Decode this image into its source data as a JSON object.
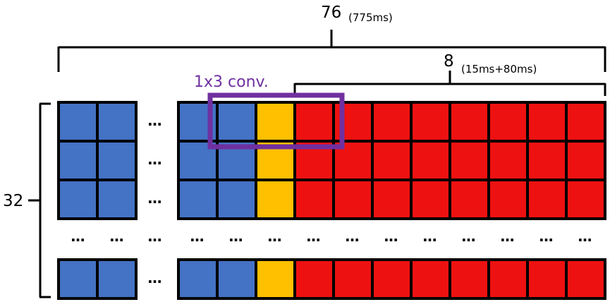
{
  "top_span": {
    "count": "76",
    "duration": "(775ms)"
  },
  "sub_span": {
    "count": "8",
    "duration": "(15ms+80ms)"
  },
  "conv_label": "1x3 conv.",
  "rows_label": "32",
  "ellipsis": "…",
  "colors": {
    "blue": "#4472C4",
    "yellow": "#FFC000",
    "red": "#EE1111",
    "conv_box": "#7030A0",
    "outline": "#000000"
  },
  "cell_row_pattern": {
    "left_group": [
      "blue",
      "blue"
    ],
    "right_group": [
      "blue",
      "blue",
      "yellow",
      "red",
      "red",
      "red",
      "red",
      "red",
      "red",
      "red",
      "red"
    ]
  },
  "visible_rows": 4
}
